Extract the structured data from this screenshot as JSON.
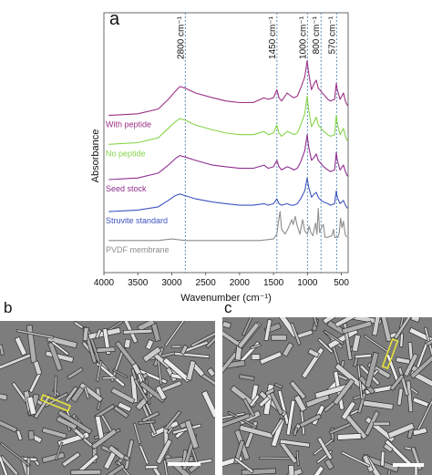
{
  "panel_a": {
    "letter": "a",
    "chart_data": {
      "type": "line",
      "title": "",
      "xlabel": "Wavenumber (cm⁻¹)",
      "ylabel": "Absorbance",
      "xlim": [
        4000,
        400
      ],
      "x_reversed": true,
      "y_ticks_shown": false,
      "x_ticks": [
        "4000",
        "3500",
        "3000",
        "2500",
        "2000",
        "1500",
        "1000",
        "500"
      ],
      "reference_lines": [
        {
          "wavenumber": 2800,
          "label": "2800 cm⁻¹"
        },
        {
          "wavenumber": 1450,
          "label": "1450 cm⁻¹"
        },
        {
          "wavenumber": 1000,
          "label": "1000 cm⁻¹"
        },
        {
          "wavenumber": 800,
          "label": "800 cm⁻¹"
        },
        {
          "wavenumber": 570,
          "label": "570 cm⁻¹"
        }
      ],
      "series": [
        {
          "name": "With peptide",
          "color": "#9c2f86",
          "points": [
            [
              3930,
              0.98
            ],
            [
              3500,
              0.99
            ],
            [
              3200,
              1.02
            ],
            [
              3050,
              1.08
            ],
            [
              2950,
              1.13
            ],
            [
              2880,
              1.16
            ],
            [
              2800,
              1.15
            ],
            [
              2650,
              1.12
            ],
            [
              2400,
              1.09
            ],
            [
              2200,
              1.07
            ],
            [
              2000,
              1.06
            ],
            [
              1800,
              1.06
            ],
            [
              1640,
              1.09
            ],
            [
              1580,
              1.08
            ],
            [
              1500,
              1.09
            ],
            [
              1450,
              1.14
            ],
            [
              1420,
              1.09
            ],
            [
              1380,
              1.07
            ],
            [
              1300,
              1.12
            ],
            [
              1240,
              1.1
            ],
            [
              1200,
              1.09
            ],
            [
              1150,
              1.1
            ],
            [
              1100,
              1.15
            ],
            [
              1040,
              1.22
            ],
            [
              1005,
              1.32
            ],
            [
              980,
              1.24
            ],
            [
              940,
              1.14
            ],
            [
              900,
              1.18
            ],
            [
              870,
              1.2
            ],
            [
              840,
              1.15
            ],
            [
              800,
              1.13
            ],
            [
              760,
              1.11
            ],
            [
              700,
              1.08
            ],
            [
              660,
              1.07
            ],
            [
              600,
              1.08
            ],
            [
              575,
              1.18
            ],
            [
              560,
              1.14
            ],
            [
              520,
              1.08
            ],
            [
              470,
              1.12
            ],
            [
              440,
              1.07
            ],
            [
              410,
              1.04
            ]
          ]
        },
        {
          "name": "No peptide",
          "color": "#86d44a",
          "points": [
            [
              3930,
              0.8
            ],
            [
              3500,
              0.81
            ],
            [
              3200,
              0.84
            ],
            [
              3050,
              0.9
            ],
            [
              2950,
              0.94
            ],
            [
              2880,
              0.96
            ],
            [
              2800,
              0.95
            ],
            [
              2650,
              0.92
            ],
            [
              2400,
              0.89
            ],
            [
              2200,
              0.87
            ],
            [
              2000,
              0.86
            ],
            [
              1800,
              0.86
            ],
            [
              1640,
              0.88
            ],
            [
              1580,
              0.86
            ],
            [
              1500,
              0.87
            ],
            [
              1450,
              0.92
            ],
            [
              1420,
              0.87
            ],
            [
              1380,
              0.85
            ],
            [
              1300,
              0.88
            ],
            [
              1240,
              0.87
            ],
            [
              1200,
              0.86
            ],
            [
              1150,
              0.87
            ],
            [
              1100,
              0.92
            ],
            [
              1040,
              0.99
            ],
            [
              1005,
              1.1
            ],
            [
              980,
              1.01
            ],
            [
              940,
              0.91
            ],
            [
              900,
              0.94
            ],
            [
              870,
              0.97
            ],
            [
              840,
              0.92
            ],
            [
              800,
              0.9
            ],
            [
              760,
              0.88
            ],
            [
              700,
              0.86
            ],
            [
              660,
              0.85
            ],
            [
              600,
              0.86
            ],
            [
              575,
              0.98
            ],
            [
              560,
              0.93
            ],
            [
              520,
              0.86
            ],
            [
              470,
              0.9
            ],
            [
              440,
              0.85
            ],
            [
              410,
              0.82
            ]
          ]
        },
        {
          "name": "Seed stock",
          "color": "#8e2e8f",
          "points": [
            [
              3930,
              0.58
            ],
            [
              3500,
              0.59
            ],
            [
              3200,
              0.62
            ],
            [
              3050,
              0.67
            ],
            [
              2950,
              0.71
            ],
            [
              2880,
              0.73
            ],
            [
              2800,
              0.72
            ],
            [
              2650,
              0.7
            ],
            [
              2400,
              0.67
            ],
            [
              2200,
              0.66
            ],
            [
              2000,
              0.65
            ],
            [
              1800,
              0.65
            ],
            [
              1640,
              0.67
            ],
            [
              1580,
              0.65
            ],
            [
              1500,
              0.66
            ],
            [
              1450,
              0.7
            ],
            [
              1420,
              0.66
            ],
            [
              1380,
              0.64
            ],
            [
              1300,
              0.66
            ],
            [
              1240,
              0.65
            ],
            [
              1200,
              0.64
            ],
            [
              1150,
              0.65
            ],
            [
              1100,
              0.69
            ],
            [
              1040,
              0.76
            ],
            [
              1005,
              0.86
            ],
            [
              980,
              0.78
            ],
            [
              940,
              0.7
            ],
            [
              900,
              0.72
            ],
            [
              870,
              0.74
            ],
            [
              840,
              0.7
            ],
            [
              800,
              0.68
            ],
            [
              760,
              0.66
            ],
            [
              700,
              0.64
            ],
            [
              660,
              0.63
            ],
            [
              600,
              0.64
            ],
            [
              575,
              0.75
            ],
            [
              560,
              0.7
            ],
            [
              520,
              0.64
            ],
            [
              470,
              0.67
            ],
            [
              440,
              0.63
            ],
            [
              410,
              0.6
            ]
          ]
        },
        {
          "name": "Struvite standard",
          "color": "#3f55c0",
          "points": [
            [
              3930,
              0.38
            ],
            [
              3500,
              0.39
            ],
            [
              3200,
              0.41
            ],
            [
              3050,
              0.45
            ],
            [
              2950,
              0.48
            ],
            [
              2880,
              0.49
            ],
            [
              2800,
              0.48
            ],
            [
              2650,
              0.46
            ],
            [
              2400,
              0.44
            ],
            [
              2200,
              0.43
            ],
            [
              2000,
              0.42
            ],
            [
              1800,
              0.42
            ],
            [
              1640,
              0.43
            ],
            [
              1580,
              0.42
            ],
            [
              1500,
              0.43
            ],
            [
              1450,
              0.46
            ],
            [
              1420,
              0.43
            ],
            [
              1380,
              0.42
            ],
            [
              1300,
              0.43
            ],
            [
              1240,
              0.42
            ],
            [
              1200,
              0.42
            ],
            [
              1150,
              0.43
            ],
            [
              1100,
              0.46
            ],
            [
              1040,
              0.51
            ],
            [
              1005,
              0.59
            ],
            [
              980,
              0.53
            ],
            [
              940,
              0.47
            ],
            [
              900,
              0.49
            ],
            [
              870,
              0.5
            ],
            [
              840,
              0.47
            ],
            [
              800,
              0.45
            ],
            [
              760,
              0.44
            ],
            [
              700,
              0.43
            ],
            [
              660,
              0.42
            ],
            [
              600,
              0.43
            ],
            [
              575,
              0.51
            ],
            [
              560,
              0.47
            ],
            [
              520,
              0.43
            ],
            [
              470,
              0.45
            ],
            [
              440,
              0.42
            ],
            [
              410,
              0.4
            ]
          ]
        },
        {
          "name": "PVDF membrane",
          "color": "#8c8c8c",
          "points": [
            [
              3930,
              0.2
            ],
            [
              3500,
              0.2
            ],
            [
              3200,
              0.2
            ],
            [
              3000,
              0.21
            ],
            [
              2800,
              0.2
            ],
            [
              2500,
              0.2
            ],
            [
              2000,
              0.2
            ],
            [
              1700,
              0.2
            ],
            [
              1500,
              0.21
            ],
            [
              1450,
              0.24
            ],
            [
              1430,
              0.31
            ],
            [
              1403,
              0.38
            ],
            [
              1380,
              0.27
            ],
            [
              1330,
              0.24
            ],
            [
              1280,
              0.28
            ],
            [
              1230,
              0.33
            ],
            [
              1210,
              0.3
            ],
            [
              1180,
              0.35
            ],
            [
              1150,
              0.29
            ],
            [
              1110,
              0.24
            ],
            [
              1072,
              0.33
            ],
            [
              1040,
              0.26
            ],
            [
              1000,
              0.24
            ],
            [
              976,
              0.29
            ],
            [
              950,
              0.25
            ],
            [
              920,
              0.23
            ],
            [
              880,
              0.31
            ],
            [
              860,
              0.24
            ],
            [
              840,
              0.4
            ],
            [
              820,
              0.25
            ],
            [
              795,
              0.28
            ],
            [
              765,
              0.3
            ],
            [
              740,
              0.22
            ],
            [
              700,
              0.22
            ],
            [
              640,
              0.23
            ],
            [
              615,
              0.27
            ],
            [
              600,
              0.22
            ],
            [
              550,
              0.22
            ],
            [
              530,
              0.25
            ],
            [
              511,
              0.34
            ],
            [
              490,
              0.28
            ],
            [
              470,
              0.32
            ],
            [
              445,
              0.24
            ],
            [
              420,
              0.22
            ]
          ]
        }
      ]
    }
  },
  "panel_b": {
    "letter": "b",
    "scale_bar": "present"
  },
  "panel_c": {
    "letter": "c",
    "scale_bar": "present"
  }
}
